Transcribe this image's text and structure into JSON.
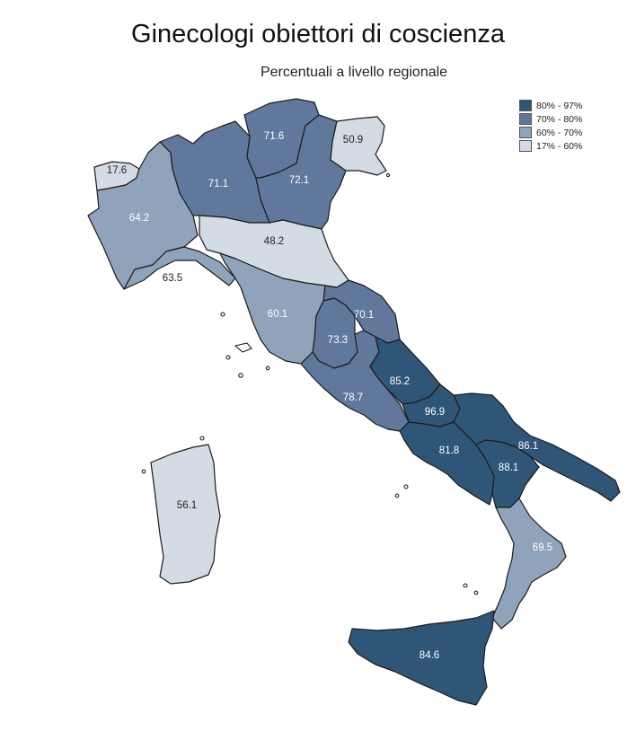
{
  "title": "Ginecologi obiettori di coscienza",
  "subtitle": "Percentuali a livello regionale",
  "legend": [
    {
      "label": "80% - 97%",
      "color": "#2f5577"
    },
    {
      "label": "70% - 80%",
      "color": "#60789b"
    },
    {
      "label": "60% - 70%",
      "color": "#8fa3bb"
    },
    {
      "label": "17% - 60%",
      "color": "#d3dbe5"
    }
  ],
  "regions": [
    {
      "name": "Valle d'Aosta",
      "value": "17.6",
      "cls": 3
    },
    {
      "name": "Piemonte",
      "value": "64.2",
      "cls": 2
    },
    {
      "name": "Liguria",
      "value": "63.5",
      "cls": 2
    },
    {
      "name": "Lombardia",
      "value": "71.1",
      "cls": 1
    },
    {
      "name": "Trentino-Alto Adige",
      "value": "71.6",
      "cls": 1
    },
    {
      "name": "Veneto",
      "value": "72.1",
      "cls": 1
    },
    {
      "name": "Friuli-Venezia Giulia",
      "value": "50.9",
      "cls": 3
    },
    {
      "name": "Emilia-Romagna",
      "value": "48.2",
      "cls": 3
    },
    {
      "name": "Toscana",
      "value": "60.1",
      "cls": 2
    },
    {
      "name": "Marche",
      "value": "70.1",
      "cls": 1
    },
    {
      "name": "Umbria",
      "value": "73.3",
      "cls": 1
    },
    {
      "name": "Lazio",
      "value": "78.7",
      "cls": 1
    },
    {
      "name": "Abruzzo",
      "value": "85.2",
      "cls": 0
    },
    {
      "name": "Molise",
      "value": "96.9",
      "cls": 0
    },
    {
      "name": "Campania",
      "value": "81.8",
      "cls": 0
    },
    {
      "name": "Puglia",
      "value": "86.1",
      "cls": 0
    },
    {
      "name": "Basilicata",
      "value": "88.1",
      "cls": 0
    },
    {
      "name": "Calabria",
      "value": "69.5",
      "cls": 2
    },
    {
      "name": "Sicilia",
      "value": "84.6",
      "cls": 0
    },
    {
      "name": "Sardegna",
      "value": "56.1",
      "cls": 3
    }
  ]
}
